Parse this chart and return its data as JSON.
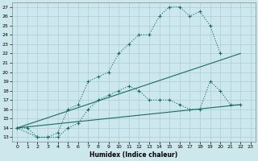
{
  "xlabel": "Humidex (Indice chaleur)",
  "bg_color": "#cce8ec",
  "line_color": "#1a6b62",
  "grid_color": "#aacdd4",
  "xlim": [
    -0.5,
    23.5
  ],
  "ylim": [
    12.5,
    27.5
  ],
  "xticks": [
    0,
    1,
    2,
    3,
    4,
    5,
    6,
    7,
    8,
    9,
    10,
    11,
    12,
    13,
    14,
    15,
    16,
    17,
    18,
    19,
    20,
    21,
    22,
    23
  ],
  "yticks": [
    13,
    14,
    15,
    16,
    17,
    18,
    19,
    20,
    21,
    22,
    23,
    24,
    25,
    26,
    27
  ],
  "line1_x": [
    0,
    1,
    2,
    3,
    4,
    5,
    6,
    7,
    8,
    9,
    10,
    11,
    12,
    13,
    14,
    15,
    16,
    17,
    18,
    19,
    20
  ],
  "line1_y": [
    14,
    14,
    13,
    13,
    13.5,
    16,
    16.5,
    19,
    19.5,
    20,
    22,
    23,
    24,
    24,
    26,
    27,
    27,
    26,
    26.5,
    25,
    22
  ],
  "line2_x": [
    0,
    2,
    3,
    4,
    5,
    6,
    7,
    8,
    9,
    10,
    11,
    12,
    13,
    14,
    15,
    16,
    17,
    18,
    19,
    20,
    21,
    22
  ],
  "line2_y": [
    14,
    13,
    13,
    13,
    14,
    14.5,
    16,
    17,
    17.5,
    18,
    18.5,
    18,
    17,
    17,
    17,
    16.5,
    16,
    16,
    19,
    18,
    16.5,
    16.5
  ],
  "line3_x": [
    0,
    22
  ],
  "line3_y": [
    14,
    22
  ],
  "line4_x": [
    0,
    22
  ],
  "line4_y": [
    14,
    16.5
  ]
}
